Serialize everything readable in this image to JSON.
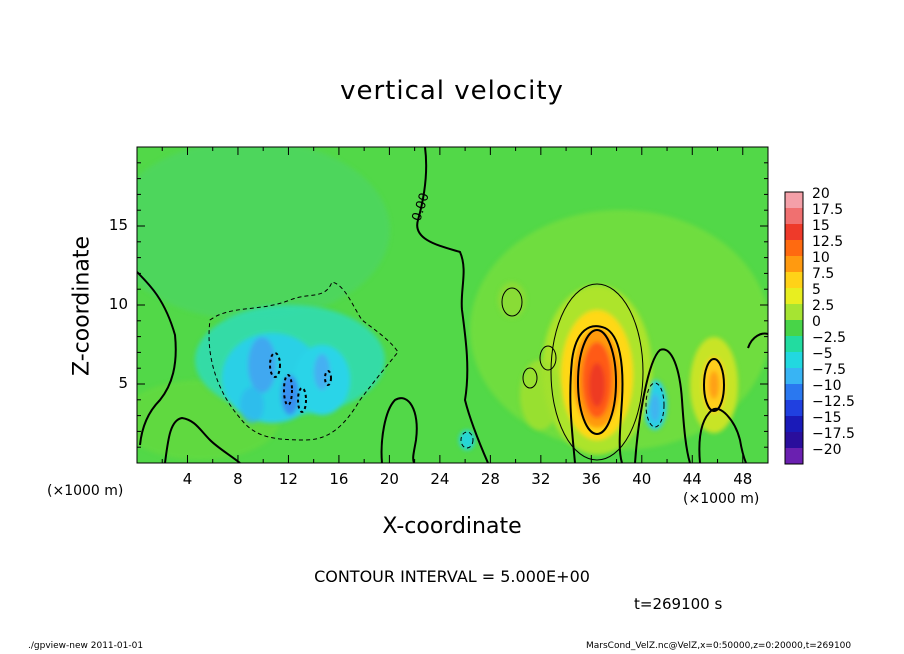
{
  "chart_data": {
    "type": "heatmap",
    "title": "vertical velocity",
    "xlabel": "X-coordinate",
    "ylabel": "Z-coordinate",
    "x_unit_left": "(×1000 m)",
    "x_unit_right": "(×1000 m)",
    "xlim": [
      0,
      50
    ],
    "ylim": [
      0,
      20
    ],
    "x_ticks": [
      "4",
      "8",
      "12",
      "16",
      "20",
      "24",
      "28",
      "32",
      "36",
      "40",
      "44",
      "48"
    ],
    "y_ticks": [
      "5",
      "10",
      "15"
    ],
    "contour_label": "0.00",
    "contour_interval": "CONTOUR INTERVAL = 5.000E+00",
    "time_label": "t=269100 s",
    "colorbar": {
      "labels": [
        "20",
        "17.5",
        "15",
        "12.5",
        "10",
        "7.5",
        "5",
        "2.5",
        "0",
        "−2.5",
        "−5",
        "−7.5",
        "−10",
        "−12.5",
        "−15",
        "−17.5",
        "−20"
      ],
      "colors": [
        "#f4a0a8",
        "#f07070",
        "#ee3a2a",
        "#ff6a10",
        "#ff9a10",
        "#ffd218",
        "#e8ee20",
        "#a6e432",
        "#48d448",
        "#22dca0",
        "#22d8e0",
        "#38b4f4",
        "#2a78f0",
        "#2040e0",
        "#1a1ab8",
        "#2a0e9c",
        "#6a20b0"
      ]
    },
    "features": [
      {
        "kind": "updraft",
        "x": 36.4,
        "z": 5.5,
        "w": 16
      },
      {
        "kind": "updraft",
        "x": 45.8,
        "z": 5.2,
        "w": 9
      },
      {
        "kind": "updraft",
        "x": 31.5,
        "z": 3.5,
        "w": 4
      },
      {
        "kind": "downdraft",
        "x": 11.0,
        "z": 5.5,
        "w": -8
      },
      {
        "kind": "downdraft",
        "x": 15.0,
        "z": 5.0,
        "w": -7
      },
      {
        "kind": "downdraft",
        "x": 41.2,
        "z": 3.5,
        "w": -6
      },
      {
        "kind": "downdraft",
        "x": 26.2,
        "z": 1.3,
        "w": -3
      }
    ]
  },
  "footer": {
    "left": "./gpview-new   2011-01-01",
    "right": "MarsCond_VelZ.nc@VelZ,x=0:50000,z=0:20000,t=269100"
  }
}
